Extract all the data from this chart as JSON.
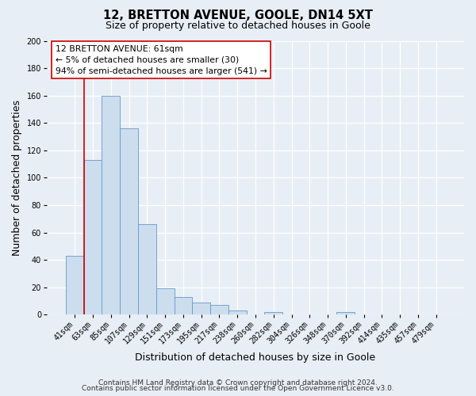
{
  "title": "12, BRETTON AVENUE, GOOLE, DN14 5XT",
  "subtitle": "Size of property relative to detached houses in Goole",
  "xlabel": "Distribution of detached houses by size in Goole",
  "ylabel": "Number of detached properties",
  "bar_labels": [
    "41sqm",
    "63sqm",
    "85sqm",
    "107sqm",
    "129sqm",
    "151sqm",
    "173sqm",
    "195sqm",
    "217sqm",
    "238sqm",
    "260sqm",
    "282sqm",
    "304sqm",
    "326sqm",
    "348sqm",
    "370sqm",
    "392sqm",
    "414sqm",
    "435sqm",
    "457sqm",
    "479sqm"
  ],
  "bar_heights": [
    43,
    113,
    160,
    136,
    66,
    19,
    13,
    9,
    7,
    3,
    0,
    2,
    0,
    0,
    0,
    2,
    0,
    0,
    0,
    0,
    0
  ],
  "bar_color": "#ccdded",
  "bar_edge_color": "#6699cc",
  "ylim": [
    0,
    200
  ],
  "yticks": [
    0,
    20,
    40,
    60,
    80,
    100,
    120,
    140,
    160,
    180,
    200
  ],
  "vline_color": "#cc0000",
  "annotation_title": "12 BRETTON AVENUE: 61sqm",
  "annotation_line1": "← 5% of detached houses are smaller (30)",
  "annotation_line2": "94% of semi-detached houses are larger (541) →",
  "annotation_box_color": "#ffffff",
  "annotation_box_edge": "#cc0000",
  "footer1": "Contains HM Land Registry data © Crown copyright and database right 2024.",
  "footer2": "Contains public sector information licensed under the Open Government Licence v3.0.",
  "background_color": "#e8eef5",
  "plot_background_color": "#e8eef5",
  "grid_color": "#ffffff",
  "title_fontsize": 10.5,
  "subtitle_fontsize": 9,
  "tick_fontsize": 7,
  "label_fontsize": 9,
  "footer_fontsize": 6.5
}
